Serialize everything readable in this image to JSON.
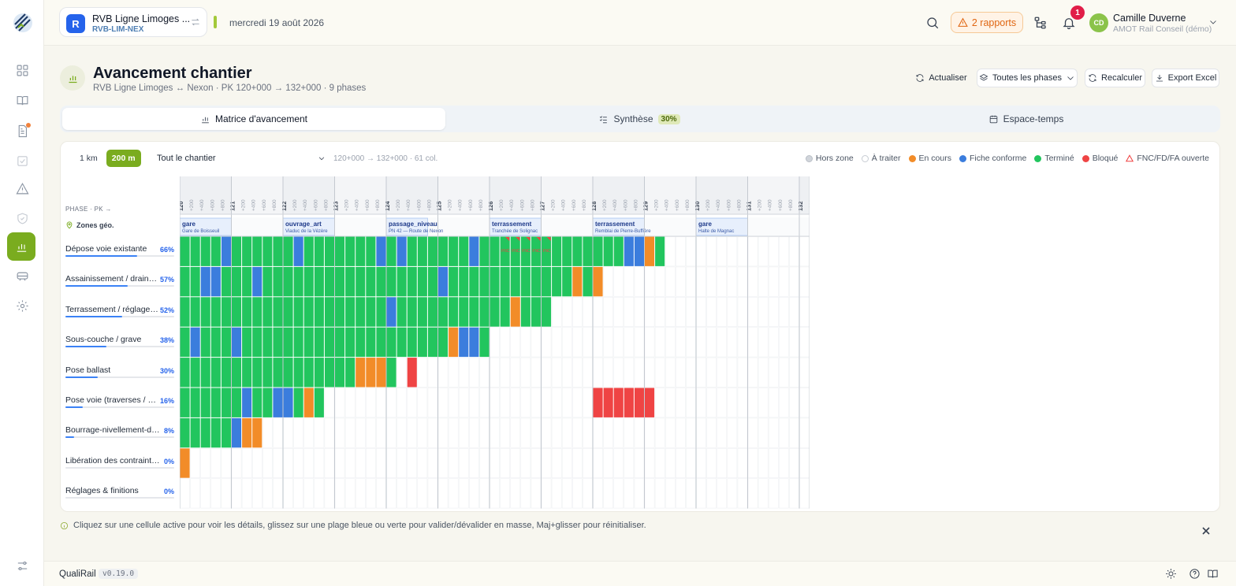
{
  "app": {
    "name": "QualiRail",
    "version": "v0.19.0"
  },
  "project": {
    "avatar": "R",
    "name": "RVB Ligne Limoges ...",
    "code": "RVB-LIM-NEX"
  },
  "date": "mercredi 19 août 2026",
  "header": {
    "reports": "2 rapports",
    "notifications": "1"
  },
  "user": {
    "initials": "CD",
    "name": "Camille Duverne",
    "org": "AMOT Rail Conseil (démo)"
  },
  "page": {
    "title": "Avancement chantier",
    "subtitle": "RVB Ligne Limoges ↔ Nexon · PK 120+000 → 132+000 · 9 phases"
  },
  "actions": {
    "refresh": "Actualiser",
    "phases": "Toutes les phases",
    "recalc": "Recalculer",
    "export": "Export Excel"
  },
  "tabs": [
    {
      "label": "Matrice d'avancement"
    },
    {
      "label": "Synthèse",
      "badge": "30%"
    },
    {
      "label": "Espace-temps"
    }
  ],
  "toolbar": {
    "res1": "1 km",
    "res2": "200 m",
    "zone": "Tout le chantier",
    "range": "120+000 → 132+000 · 61 col."
  },
  "legend": [
    {
      "label": "Hors zone",
      "color": "#d1d5db"
    },
    {
      "label": "À traiter",
      "color": "#ffffff"
    },
    {
      "label": "En cours",
      "color": "#f28c28"
    },
    {
      "label": "Fiche conforme",
      "color": "#3b7ddd"
    },
    {
      "label": "Terminé",
      "color": "#22c55e"
    },
    {
      "label": "Bloqué",
      "color": "#ef4444"
    },
    {
      "label": "FNC/FD/FA ouverte",
      "color": "#ef4444"
    }
  ],
  "colors": {
    "pending": "#f28c28",
    "valid": "#3b7ddd",
    "done": "#22c55e",
    "blocked": "#ef4444",
    "accent": "#7aac1f"
  },
  "matrix": {
    "header_label": "PHASE · PK →",
    "zones_label": "Zones géo.",
    "pk_km": [
      "120",
      "121",
      "122",
      "123",
      "124",
      "125",
      "126",
      "127",
      "128",
      "129",
      "130",
      "131",
      "132"
    ],
    "pk_sub": [
      "+200",
      "+400",
      "+600",
      "+800"
    ],
    "zones": [
      {
        "type": "gare",
        "name": "Gare de Boisseuil",
        "start": 0,
        "end": 5
      },
      {
        "type": "ouvrage_art",
        "name": "Viaduc de la Vézère",
        "start": 10,
        "end": 15
      },
      {
        "type": "passage_niveau",
        "name": "PN 42 — Route de Nexon",
        "start": 20,
        "end": 24
      },
      {
        "type": "terrassement",
        "name": "Tranchée de Solignac",
        "start": 30,
        "end": 35
      },
      {
        "type": "terrassement",
        "name": "Remblai de Pierre-Buffière",
        "start": 40,
        "end": 45
      },
      {
        "type": "gare",
        "name": "Halte de Magnac",
        "start": 50,
        "end": 55
      }
    ],
    "phases": [
      {
        "name": "Dépose voie existante",
        "pct": "66%",
        "progress": 0.66,
        "cells": "GGGGBGGGGGGBGGGGGGGBGBGGGGGGBGGGGGGGGGGGGGGBBOG"
      },
      {
        "name": "Assainissement / drainage",
        "pct": "57%",
        "progress": 0.57,
        "cells": "GGBBGGGBGGGGGGGGGGGGGGGGGBGGGGGGGGGGGGOGO"
      },
      {
        "name": "Terrassement / réglage pla...",
        "pct": "52%",
        "progress": 0.52,
        "cells": "GGGGGGGGGGGGGGGGGGGGBGGGGGGGGGGGOGGG"
      },
      {
        "name": "Sous-couche / grave",
        "pct": "38%",
        "progress": 0.38,
        "cells": "GBGGGBGGGGGGGGGGGGGGGGGGGGOBBG"
      },
      {
        "name": "Pose ballast",
        "pct": "30%",
        "progress": 0.3,
        "cells": "GGGGGGGGGGGGGGGGGOOOG.R"
      },
      {
        "name": "Pose voie (traverses / LRS)",
        "pct": "16%",
        "progress": 0.16,
        "cells": "GGGGGGBGGBBGOG..........................RRRRRR"
      },
      {
        "name": "Bourrage-nivellement-dress...",
        "pct": "8%",
        "progress": 0.08,
        "cells": "GGGGGBOO"
      },
      {
        "name": "Libération des contraintes /...",
        "pct": "0%",
        "progress": 0.0,
        "cells": "O"
      },
      {
        "name": "Réglages & finitions",
        "pct": "0%",
        "progress": 0.0,
        "cells": ""
      }
    ],
    "fnc_marker": "FNC",
    "fnc_row": 0,
    "fnc_cells": [
      31,
      32,
      33,
      34,
      35
    ]
  },
  "hint": "Cliquez sur une cellule active pour voir les détails, glissez sur une plage bleue ou verte pour valider/dévalider en masse, Maj+glisser pour réinitialiser."
}
